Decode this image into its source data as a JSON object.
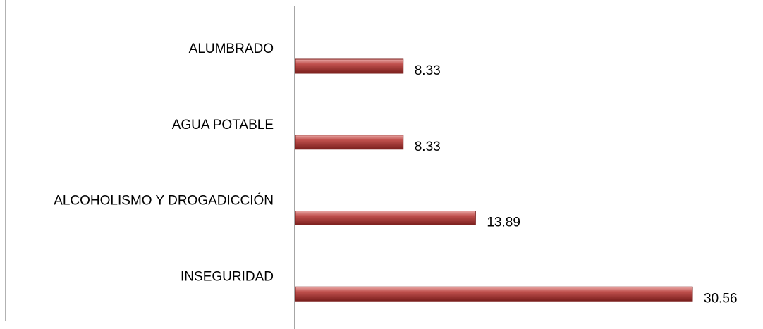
{
  "chart_data": {
    "type": "bar",
    "orientation": "horizontal",
    "categories": [
      "ALUMBRADO",
      "AGUA POTABLE",
      "ALCOHOLISMO Y DROGADICCIÓN",
      "INSEGURIDAD"
    ],
    "values": [
      8.33,
      8.33,
      13.89,
      30.56
    ],
    "color": "#b23a3a"
  }
}
